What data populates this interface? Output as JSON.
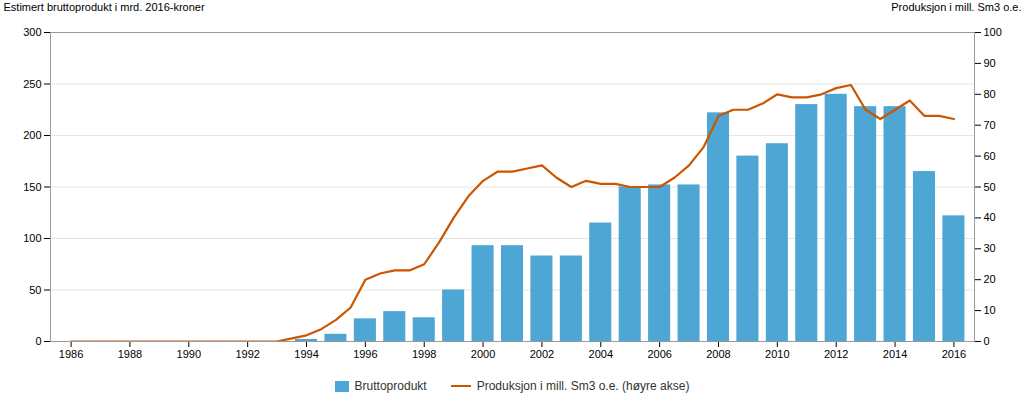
{
  "chart_data": {
    "type": "bar",
    "ylabel": "Estimert bruttoprodukt i mrd. 2016-kroner",
    "y2label": "Produksjon i mill. Sm3 o.e.",
    "series": [
      {
        "name": "Bruttoprodukt",
        "type": "bar",
        "color": "#4da6d4",
        "x": [
          1993,
          1994,
          1995,
          1996,
          1997,
          1998,
          1999,
          2000,
          2001,
          2002,
          2003,
          2004,
          2005,
          2006,
          2007,
          2008,
          2009,
          2010,
          2011,
          2012,
          2013,
          2014,
          2015,
          2016
        ],
        "values": [
          0,
          2,
          7,
          22,
          29,
          23,
          50,
          93,
          93,
          83,
          83,
          115,
          150,
          152,
          152,
          222,
          180,
          192,
          230,
          240,
          228,
          228,
          165,
          122
        ]
      },
      {
        "name": "Produksjon i mill. Sm3 o.e. (høyre akse)",
        "type": "line",
        "color": "#cc5500",
        "axis": "y2",
        "x": [
          1986,
          1987,
          1988,
          1989,
          1990,
          1991,
          1992,
          1993,
          1993.5,
          1994,
          1994.5,
          1995,
          1995.5,
          1996,
          1996.5,
          1997,
          1997.5,
          1998,
          1998.5,
          1999,
          1999.5,
          2000,
          2000.5,
          2001,
          2001.5,
          2002,
          2002.5,
          2003,
          2003.5,
          2004,
          2004.5,
          2005,
          2005.5,
          2006,
          2006.5,
          2007,
          2007.5,
          2008,
          2008.5,
          2009,
          2009.5,
          2010,
          2010.5,
          2011,
          2011.5,
          2012,
          2012.5,
          2013,
          2013.5,
          2014,
          2014.5,
          2015,
          2015.5,
          2016
        ],
        "values": [
          0,
          0,
          0,
          0,
          0,
          0,
          0,
          0,
          1,
          2,
          4,
          7,
          11,
          20,
          22,
          23,
          23,
          25,
          32,
          40,
          47,
          52,
          55,
          55,
          56,
          57,
          53,
          50,
          52,
          51,
          51,
          50,
          50,
          50,
          53,
          57,
          63,
          73,
          75,
          75,
          77,
          80,
          79,
          79,
          80,
          82,
          83,
          75,
          72,
          75,
          78,
          73,
          73,
          72
        ]
      }
    ],
    "xlim": [
      1985.3,
      2016.7
    ],
    "xticks": [
      1986,
      1988,
      1990,
      1992,
      1994,
      1996,
      1998,
      2000,
      2002,
      2004,
      2006,
      2008,
      2010,
      2012,
      2014,
      2016
    ],
    "ylim": [
      0,
      300
    ],
    "yticks": [
      0,
      50,
      100,
      150,
      200,
      250,
      300
    ],
    "y2lim": [
      0,
      100
    ],
    "y2ticks": [
      0,
      10,
      20,
      30,
      40,
      50,
      60,
      70,
      80,
      90,
      100
    ],
    "grid": true,
    "legend": "bottom"
  }
}
